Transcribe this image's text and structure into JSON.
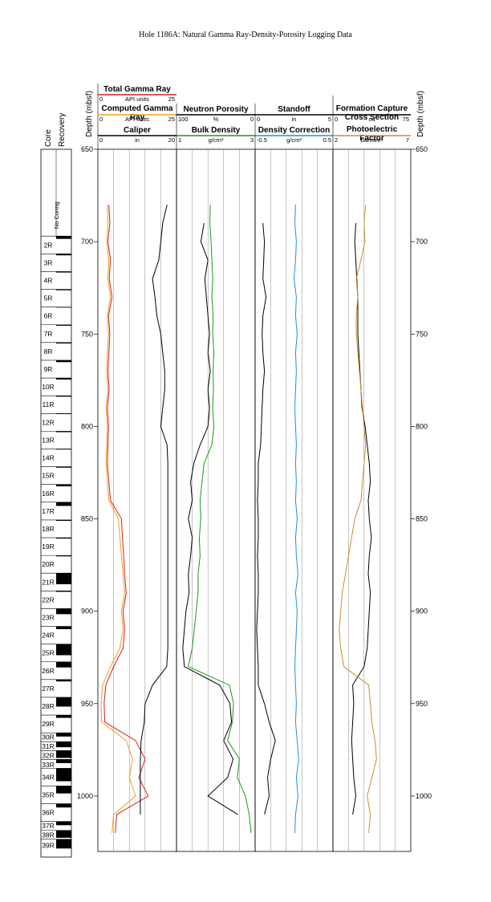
{
  "chart_data": {
    "type": "well-log",
    "title": "Hole 1186A: Natural Gamma Ray-Density-Porosity Logging Data",
    "depth_label": "Depth (mbsf)",
    "ylim": [
      650,
      1030
    ],
    "yticks": [
      650,
      700,
      750,
      800,
      850,
      900,
      950,
      1000
    ],
    "core_label": "Core",
    "recovery_label": "Recovery",
    "no_coring_label": "No Coring",
    "cores": [
      {
        "label": "2R",
        "top": 697.0,
        "recovered": 1.5
      },
      {
        "label": "3R",
        "top": 706.6,
        "recovered": 0.8
      },
      {
        "label": "4R",
        "top": 716.2,
        "recovered": 0.5
      },
      {
        "label": "5R",
        "top": 725.8,
        "recovered": 0.5
      },
      {
        "label": "6R",
        "top": 735.4,
        "recovered": 0.3
      },
      {
        "label": "7R",
        "top": 745.0,
        "recovered": 0.5
      },
      {
        "label": "8R",
        "top": 754.6,
        "recovered": 0.5
      },
      {
        "label": "9R",
        "top": 764.2,
        "recovered": 1.0
      },
      {
        "label": "10R",
        "top": 773.8,
        "recovered": 0.8
      },
      {
        "label": "11R",
        "top": 783.4,
        "recovered": 0.5
      },
      {
        "label": "12R",
        "top": 793.0,
        "recovered": 0.3
      },
      {
        "label": "13R",
        "top": 802.6,
        "recovered": 0.5
      },
      {
        "label": "14R",
        "top": 812.2,
        "recovered": 0.3
      },
      {
        "label": "15R",
        "top": 821.8,
        "recovered": 0.5
      },
      {
        "label": "16R",
        "top": 831.4,
        "recovered": 1.0
      },
      {
        "label": "17R",
        "top": 841.0,
        "recovered": 2.0
      },
      {
        "label": "18R",
        "top": 850.6,
        "recovered": 0.5
      },
      {
        "label": "19R",
        "top": 860.2,
        "recovered": 0.5
      },
      {
        "label": "20R",
        "top": 869.8,
        "recovered": 0.5
      },
      {
        "label": "21R",
        "top": 879.4,
        "recovered": 6.0
      },
      {
        "label": "22R",
        "top": 889.0,
        "recovered": 0.5
      },
      {
        "label": "23R",
        "top": 898.6,
        "recovered": 3.0
      },
      {
        "label": "24R",
        "top": 908.2,
        "recovered": 1.5
      },
      {
        "label": "25R",
        "top": 917.8,
        "recovered": 6.0
      },
      {
        "label": "26R",
        "top": 927.4,
        "recovered": 3.0
      },
      {
        "label": "27R",
        "top": 937.0,
        "recovered": 1.0
      },
      {
        "label": "28R",
        "top": 946.6,
        "recovered": 5.0
      },
      {
        "label": "29R",
        "top": 956.2,
        "recovered": 1.5
      },
      {
        "label": "30R",
        "top": 965.8,
        "recovered": 2.0
      },
      {
        "label": "31R",
        "top": 970.6,
        "recovered": 3.0
      },
      {
        "label": "32R",
        "top": 975.4,
        "recovered": 4.0
      },
      {
        "label": "33R",
        "top": 980.2,
        "recovered": 2.0
      },
      {
        "label": "34R",
        "top": 985.0,
        "recovered": 7.0
      },
      {
        "label": "35R",
        "top": 994.6,
        "recovered": 4.0
      },
      {
        "label": "36R",
        "top": 1004.2,
        "recovered": 2.0
      },
      {
        "label": "37R",
        "top": 1013.8,
        "recovered": 2.0
      },
      {
        "label": "38R",
        "top": 1018.6,
        "recovered": 4.0
      },
      {
        "label": "39R",
        "top": 1023.4,
        "recovered": 5.0
      }
    ],
    "depths": [
      680,
      690,
      700,
      710,
      720,
      730,
      740,
      750,
      760,
      770,
      780,
      790,
      800,
      810,
      820,
      830,
      840,
      850,
      860,
      870,
      880,
      890,
      900,
      910,
      920,
      930,
      940,
      950,
      960,
      970,
      980,
      990,
      1000,
      1010,
      1020
    ],
    "tracks": [
      {
        "curves": [
          {
            "name": "Total Gamma Ray",
            "unit": "API units",
            "xlim": [
              0,
              25
            ],
            "color": "#d42020",
            "values": [
              3.5,
              3.8,
              3.2,
              4.0,
              3.6,
              4.5,
              3.4,
              3.8,
              3.5,
              3.2,
              3.6,
              3.0,
              3.4,
              3.2,
              3.0,
              3.5,
              4.0,
              7.5,
              7.8,
              8.2,
              8.5,
              9.0,
              8.0,
              8.5,
              8.0,
              5.0,
              2.5,
              2.0,
              2.2,
              12.0,
              15.0,
              13.0,
              16.0,
              6.0,
              5.5
            ]
          },
          {
            "name": "Computed Gamma Ray",
            "unit": "API units",
            "xlim": [
              0,
              25
            ],
            "color": "#f0a020",
            "values": [
              3.0,
              3.2,
              2.8,
              3.5,
              3.2,
              4.0,
              3.0,
              3.4,
              3.0,
              2.8,
              3.2,
              2.6,
              3.0,
              2.8,
              2.6,
              3.0,
              3.5,
              6.5,
              7.0,
              7.5,
              8.0,
              8.5,
              7.5,
              8.0,
              7.0,
              4.0,
              1.5,
              1.0,
              1.2,
              9.0,
              11.0,
              10.0,
              12.0,
              5.0,
              4.5
            ]
          },
          {
            "name": "Caliper",
            "unit": "in",
            "xlim": [
              0,
              20
            ],
            "color": "#000000",
            "values": [
              17.6,
              16.5,
              16.0,
              15.5,
              13.9,
              14.5,
              15.0,
              16.0,
              16.5,
              17.0,
              17.0,
              16.5,
              16.0,
              17.6,
              17.8,
              17.8,
              17.8,
              17.8,
              17.8,
              17.8,
              17.8,
              17.8,
              17.8,
              17.8,
              17.8,
              17.5,
              13.9,
              12.0,
              11.8,
              11.0,
              10.8,
              10.8,
              10.8,
              10.8,
              null
            ]
          }
        ]
      },
      {
        "curves": [
          {
            "name": "Neutron Porosity",
            "unit": "%",
            "xlim": [
              100,
              0
            ],
            "color": "#000000",
            "values": [
              null,
              65,
              69,
              60,
              64,
              62,
              60,
              58,
              60,
              57,
              60,
              58,
              60,
              70,
              78,
              82,
              80,
              85,
              80,
              82,
              85,
              84,
              88,
              90,
              92,
              90,
              45,
              32,
              30,
              40,
              28,
              35,
              60,
              22,
              null
            ]
          },
          {
            "name": "Bulk Density",
            "unit": "g/cm³",
            "xlim": [
              1,
              3
            ],
            "color": "#1a9a1a",
            "values": [
              1.86,
              1.85,
              1.88,
              1.9,
              1.92,
              1.9,
              1.93,
              1.92,
              1.95,
              1.93,
              1.94,
              1.92,
              1.95,
              1.9,
              1.7,
              1.65,
              1.6,
              1.62,
              1.58,
              1.6,
              1.55,
              1.55,
              1.5,
              1.45,
              1.4,
              1.3,
              2.35,
              2.45,
              2.42,
              2.3,
              2.6,
              2.55,
              2.75,
              2.85,
              2.9
            ]
          }
        ]
      },
      {
        "curves": [
          {
            "name": "Standoff",
            "unit": "in",
            "xlim": [
              0,
              5
            ],
            "color": "#000000",
            "values": [
              null,
              0.5,
              0.6,
              0.55,
              0.5,
              0.7,
              0.5,
              0.45,
              0.5,
              0.6,
              0.5,
              0.45,
              0.4,
              0.35,
              0.2,
              0.2,
              0.15,
              0.2,
              0.2,
              0.15,
              0.2,
              0.2,
              0.15,
              0.1,
              0.15,
              0.2,
              0.2,
              0.6,
              0.9,
              1.3,
              1.0,
              0.8,
              0.9,
              0.6,
              null
            ]
          },
          {
            "name": "Density Correction",
            "unit": "g/cm³",
            "xlim": [
              -0.5,
              0.5
            ],
            "color": "#1e90e0",
            "values": [
              0.02,
              0.01,
              0.03,
              0.02,
              0.0,
              0.03,
              0.02,
              0.04,
              0.02,
              0.03,
              0.02,
              0.01,
              0.02,
              0.03,
              0.02,
              0.03,
              0.02,
              0.04,
              0.02,
              0.03,
              0.05,
              0.02,
              0.04,
              0.03,
              0.02,
              0.01,
              0.02,
              0.03,
              0.02,
              0.04,
              0.06,
              0.03,
              0.05,
              0.02,
              0.01
            ]
          }
        ]
      },
      {
        "curves": [
          {
            "name": "Formation Capture Cross Section",
            "unit": "cu",
            "xlim": [
              0,
              75
            ],
            "color": "#000000",
            "values": [
              null,
              22,
              21,
              22,
              23,
              24,
              24,
              24,
              25,
              26,
              27,
              28,
              31,
              33,
              35,
              36,
              34,
              35,
              37,
              35,
              34,
              36,
              35,
              34,
              33,
              30,
              19,
              20,
              19,
              18,
              19,
              20,
              22,
              19,
              null
            ]
          },
          {
            "name": "Photoelectric Factor",
            "unit": "barns/e-",
            "xlim": [
              2,
              7
            ],
            "color": "#c8902a",
            "values": [
              4.1,
              4.0,
              4.06,
              3.8,
              3.5,
              3.6,
              3.5,
              3.5,
              3.6,
              3.7,
              3.8,
              3.9,
              4.0,
              4.1,
              4.0,
              3.9,
              3.8,
              3.4,
              3.2,
              3.0,
              2.8,
              2.6,
              2.5,
              2.4,
              2.5,
              2.7,
              4.3,
              4.4,
              4.5,
              4.7,
              4.8,
              4.5,
              4.2,
              4.4,
              4.3
            ]
          }
        ]
      }
    ]
  }
}
